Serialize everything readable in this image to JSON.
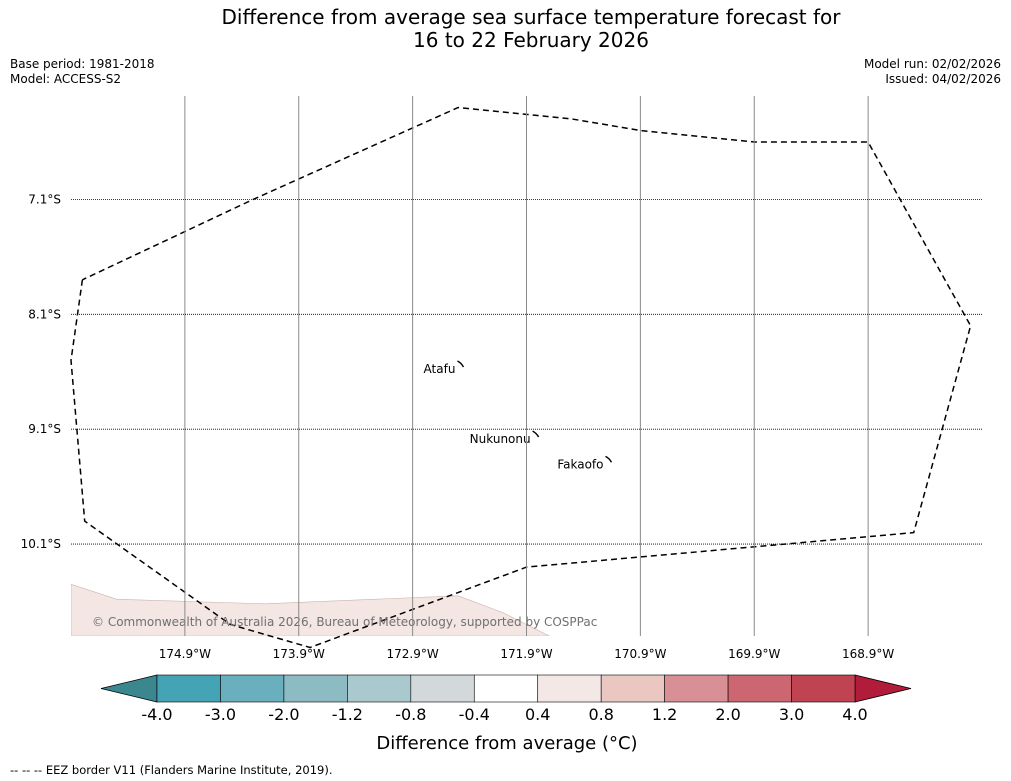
{
  "header": {
    "title_line1": "Difference from average sea surface temperature forecast for",
    "title_line2": "16 to 22 February 2026",
    "base_period": "Base period: 1981-2018",
    "model": "Model: ACCESS-S2",
    "model_run": "Model run: 02/02/2026",
    "issued": "Issued: 04/02/2026"
  },
  "footer": {
    "legend_note": "--  --  -- EEZ border V11 (Flanders Marine Institute, 2019)."
  },
  "chart_data": {
    "type": "heatmap",
    "title": "Difference from average sea surface temperature forecast for 16 to 22 February 2026",
    "x_axis": {
      "label": "",
      "range_lon": [
        -175.9,
        -167.9
      ],
      "ticks": [
        {
          "value": -174.9,
          "label": "174.9°W"
        },
        {
          "value": -173.9,
          "label": "173.9°W"
        },
        {
          "value": -172.9,
          "label": "172.9°W"
        },
        {
          "value": -171.9,
          "label": "171.9°W"
        },
        {
          "value": -170.9,
          "label": "170.9°W"
        },
        {
          "value": -169.9,
          "label": "169.9°W"
        },
        {
          "value": -168.9,
          "label": "168.9°W"
        }
      ]
    },
    "y_axis": {
      "label": "",
      "range_lat": [
        -10.9,
        -6.2
      ],
      "ticks": [
        {
          "value": -7.1,
          "label": "7.1°S"
        },
        {
          "value": -8.1,
          "label": "8.1°S"
        },
        {
          "value": -9.1,
          "label": "9.1°S"
        },
        {
          "value": -10.1,
          "label": "10.1°S"
        }
      ]
    },
    "grid": true,
    "places": [
      {
        "name": "Atafu",
        "lon": -172.48,
        "lat": -8.55
      },
      {
        "name": "Nukunonu",
        "lon": -171.82,
        "lat": -9.16
      },
      {
        "name": "Fakaofo",
        "lon": -171.18,
        "lat": -9.38
      }
    ],
    "eez_border": [
      [
        -175.8,
        -7.8
      ],
      [
        -175.9,
        -8.5
      ],
      [
        -175.78,
        -9.9
      ],
      [
        -174.5,
        -10.8
      ],
      [
        -173.8,
        -11.0
      ],
      [
        -171.9,
        -10.3
      ],
      [
        -168.5,
        -10.0
      ],
      [
        -168.0,
        -8.2
      ],
      [
        -168.9,
        -6.6
      ],
      [
        -169.9,
        -6.6
      ],
      [
        -170.9,
        -6.5
      ],
      [
        -171.5,
        -6.4
      ],
      [
        -172.5,
        -6.3
      ],
      [
        -174.3,
        -7.1
      ],
      [
        -175.8,
        -7.8
      ]
    ],
    "anomaly_region": {
      "value_range": "0.4 to 0.8",
      "polygon": [
        [
          -175.9,
          -10.45
        ],
        [
          -175.5,
          -10.58
        ],
        [
          -174.2,
          -10.62
        ],
        [
          -172.5,
          -10.55
        ],
        [
          -172.1,
          -10.7
        ],
        [
          -171.7,
          -10.9
        ],
        [
          -175.9,
          -10.9
        ]
      ]
    },
    "colorbar": {
      "label": "Difference from average (°C)",
      "boundaries": [
        "-4.0",
        "-3.0",
        "-2.0",
        "-1.2",
        "-0.8",
        "-0.4",
        "0.4",
        "0.8",
        "1.2",
        "2.0",
        "3.0",
        "4.0"
      ],
      "colors": [
        "#44a3b4",
        "#6aafbd",
        "#8cbbc4",
        "#a9c9ce",
        "#d3d8da",
        "#ffffff",
        "#f4e8e6",
        "#ebc7c2",
        "#d88f96",
        "#cc6670",
        "#c04352"
      ],
      "extend_low_color": "#3b8790",
      "extend_high_color": "#b01c3a"
    },
    "copyright": "© Commonwealth of Australia 2026, Bureau of Meteorology, supported by COSPPac"
  }
}
